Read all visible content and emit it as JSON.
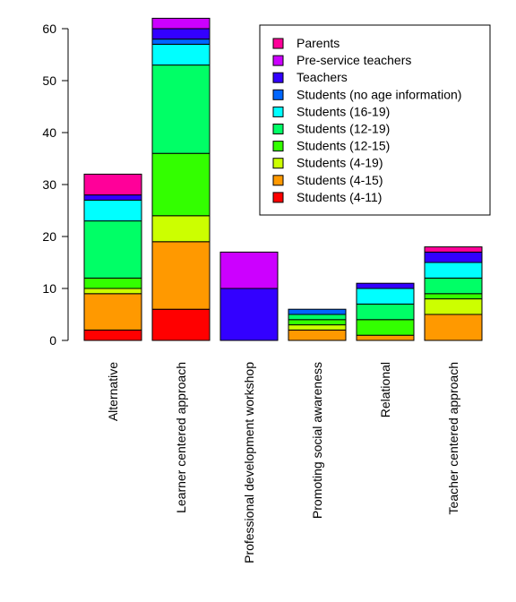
{
  "chart_data": {
    "type": "bar",
    "stacked": true,
    "categories": [
      "Alternative",
      "Learner centered approach",
      "Professional development workshop",
      "Promoting social awareness",
      "Relational",
      "Teacher centered approach"
    ],
    "ylim": [
      0,
      62
    ],
    "yticks": [
      0,
      10,
      20,
      30,
      40,
      50,
      60
    ],
    "xlabel": "",
    "ylabel": "",
    "title": "",
    "legend_position": "top-right",
    "series": [
      {
        "name": "Students (4-11)",
        "color": "#FF0000",
        "values": [
          2,
          6,
          0,
          0,
          0,
          0
        ]
      },
      {
        "name": "Students (4-15)",
        "color": "#FF9900",
        "values": [
          7,
          13,
          0,
          2,
          1,
          5
        ]
      },
      {
        "name": "Students (4-19)",
        "color": "#CCFF00",
        "values": [
          1,
          5,
          0,
          1,
          0,
          3
        ]
      },
      {
        "name": "Students (12-15)",
        "color": "#33FF00",
        "values": [
          2,
          12,
          0,
          1,
          3,
          1
        ]
      },
      {
        "name": "Students (12-19)",
        "color": "#00FF66",
        "values": [
          11,
          17,
          0,
          1,
          3,
          3
        ]
      },
      {
        "name": "Students (16-19)",
        "color": "#00FFFF",
        "values": [
          4,
          4,
          0,
          0,
          3,
          3
        ]
      },
      {
        "name": "Students (no age information)",
        "color": "#0066FF",
        "values": [
          0,
          1,
          0,
          1,
          0,
          0
        ]
      },
      {
        "name": "Teachers",
        "color": "#3300FF",
        "values": [
          1,
          2,
          10,
          0,
          1,
          2
        ]
      },
      {
        "name": "Pre-service teachers",
        "color": "#CC00FF",
        "values": [
          0,
          2,
          7,
          0,
          0,
          0
        ]
      },
      {
        "name": "Parents",
        "color": "#FF0099",
        "values": [
          4,
          0,
          0,
          0,
          0,
          1
        ]
      }
    ]
  }
}
